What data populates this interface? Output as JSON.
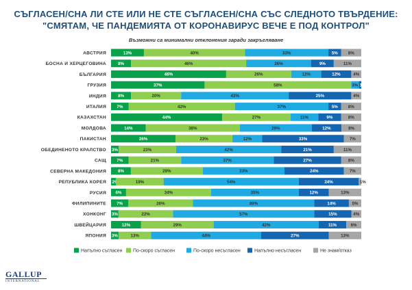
{
  "header": {
    "title_line1": "СЪГЛАСЕН/СНА ЛИ СТЕ ИЛИ НЕ СТЕ СЪГЛАСЕН/СНА СЪС СЛЕДНОТО ТВЪРДЕНИЕ:",
    "title_line2": "\"СМЯТАМ, ЧЕ ПАНДЕМИЯТА ОТ КОРОНАВИРУС ВЕЧЕ Е ПОД КОНТРОЛ\"",
    "subtitle": "Възможни са минимални отклонения заради закръгляване"
  },
  "logo": {
    "name": "GALLUP",
    "sub": "INTERNATIONAL"
  },
  "chart_data": {
    "type": "bar",
    "orientation": "horizontal",
    "stacked": true,
    "normalized": true,
    "legend_position": "bottom",
    "grid": false,
    "categories": [
      "АВСТРИЯ",
      "БОСНА И ХЕРЦЕГОВИНА",
      "БЪЛГАРИЯ",
      "ГРУЗИЯ",
      "ИНДИЯ",
      "ИТАЛИЯ",
      "КАЗАХСТАН",
      "МОЛДОВА",
      "ПАКИСТАН",
      "ОБЕДИНЕНОТО КРАЛСТВО",
      "САЩ",
      "СЕВЕРНА МАКЕДОНИЯ",
      "РЕПУБЛИКА КОРЕЯ",
      "РУСИЯ",
      "ФИЛИПИНИТЕ",
      "ХОНКОНГ",
      "ШВЕЙЦАРИЯ",
      "ЯПОНИЯ"
    ],
    "series": [
      {
        "name": "Напълно съгласен",
        "color": "#0aa14b",
        "values": [
          13,
          8,
          46,
          37,
          8,
          7,
          44,
          14,
          26,
          3,
          7,
          8,
          2,
          6,
          7,
          3,
          12,
          3
        ]
      },
      {
        "name": "По-скоро съгласен",
        "color": "#8fce4f",
        "values": [
          40,
          46,
          26,
          58,
          20,
          42,
          27,
          38,
          23,
          23,
          21,
          29,
          19,
          34,
          26,
          22,
          29,
          13
        ]
      },
      {
        "name": "По-скоро несъгласен",
        "color": "#1faae2",
        "values": [
          33,
          26,
          12,
          3,
          43,
          37,
          11,
          29,
          12,
          42,
          37,
          33,
          54,
          35,
          49,
          57,
          42,
          44
        ]
      },
      {
        "name": "Напълно несъгласен",
        "color": "#1566b0",
        "values": [
          5,
          9,
          12,
          1,
          25,
          5,
          9,
          12,
          33,
          21,
          27,
          24,
          24,
          12,
          14,
          15,
          11,
          27
        ]
      },
      {
        "name": "Не знам/отказ",
        "color": "#a6a6a6",
        "values": [
          8,
          11,
          4,
          0,
          4,
          8,
          8,
          8,
          7,
          11,
          8,
          7,
          1,
          13,
          5,
          4,
          6,
          13
        ]
      }
    ],
    "labels": [
      [
        "13%",
        "40%",
        "33%",
        "5%",
        "8%"
      ],
      [
        "8%",
        "46%",
        "26%",
        "9%",
        "11%"
      ],
      [
        "46%",
        "26%",
        "12%",
        "12%",
        "4%"
      ],
      [
        "37%",
        "58%",
        "3%",
        "1%",
        ""
      ],
      [
        "8%",
        "20%",
        "43%",
        "25%",
        "4%"
      ],
      [
        "7%",
        "42%",
        "37%",
        "5%",
        "8%"
      ],
      [
        "44%",
        "27%",
        "11%",
        "9%",
        "8%"
      ],
      [
        "14%",
        "38%",
        "29%",
        "12%",
        "8%"
      ],
      [
        "26%",
        "23%",
        "12%",
        "33%",
        "7%"
      ],
      [
        "3%",
        "23%",
        "42%",
        "21%",
        "11%"
      ],
      [
        "7%",
        "21%",
        "37%",
        "27%",
        "8%"
      ],
      [
        "8%",
        "29%",
        "33%",
        "24%",
        "7%"
      ],
      [
        "2%",
        "19%",
        "54%",
        "24%",
        "1%"
      ],
      [
        "6%",
        "34%",
        "35%",
        "12%",
        "13%"
      ],
      [
        "7%",
        "26%",
        "49%",
        "14%",
        "5%"
      ],
      [
        "3%",
        "22%",
        "57%",
        "15%",
        "4%"
      ],
      [
        "12%",
        "29%",
        "42%",
        "11%",
        "6%"
      ],
      [
        "3%",
        "13%",
        "44%",
        "27%",
        "13%"
      ]
    ]
  }
}
